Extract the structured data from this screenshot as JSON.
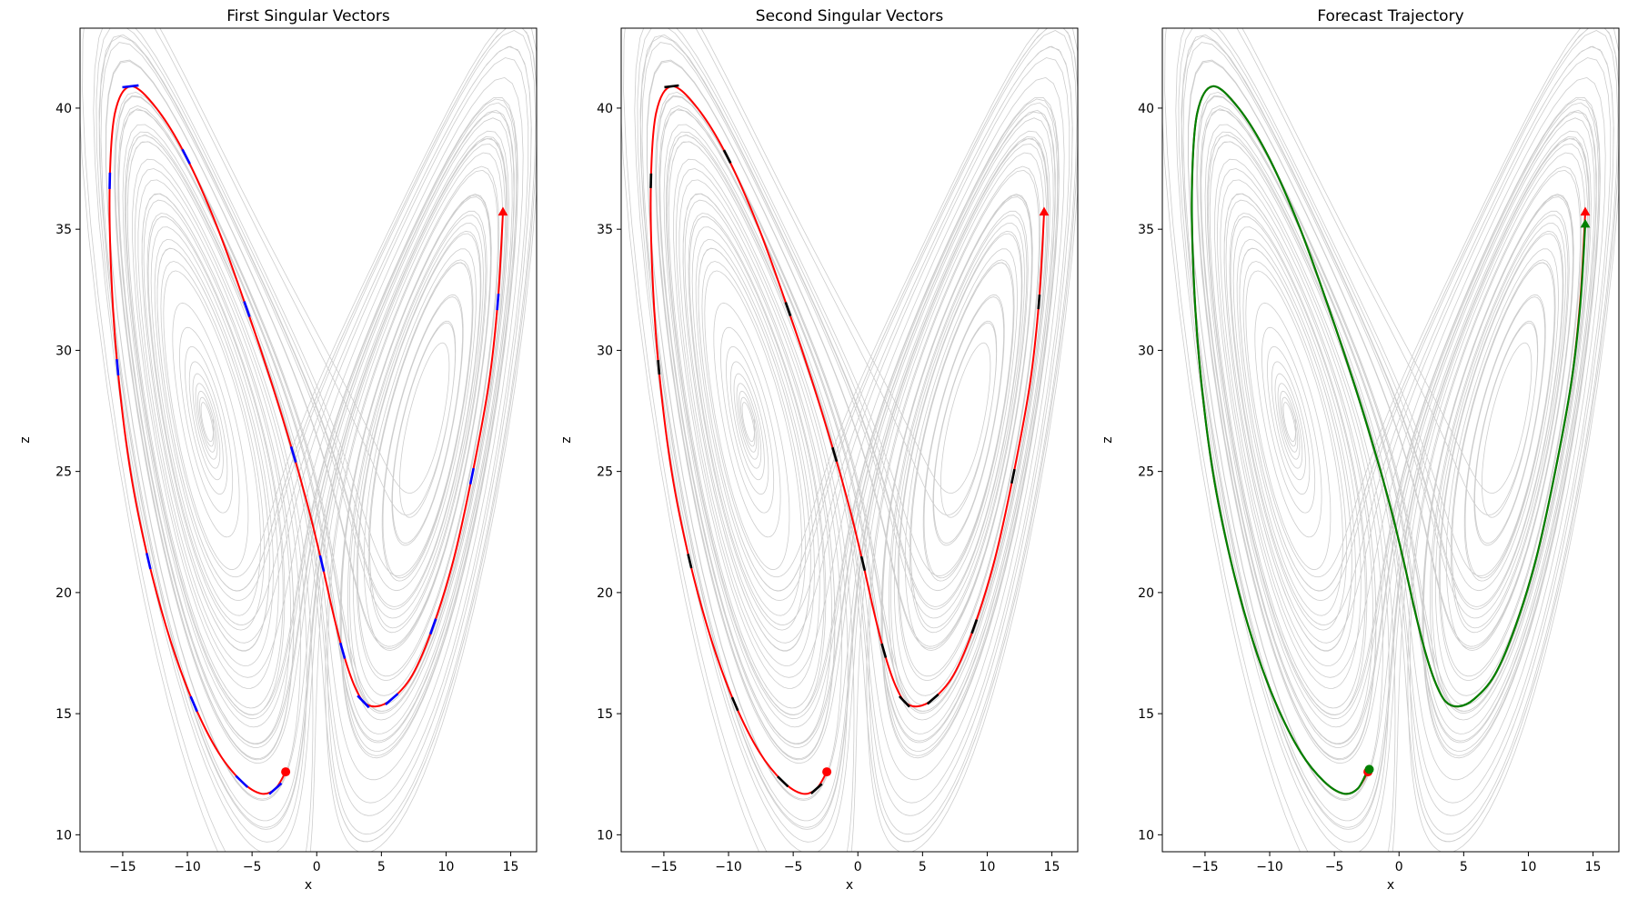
{
  "chart_data": [
    {
      "type": "line",
      "title": "First Singular Vectors",
      "xlabel": "x",
      "ylabel": "z",
      "xlim": [
        -18.3,
        17.0
      ],
      "ylim": [
        9.3,
        43.3
      ],
      "xticks": [
        -15,
        -10,
        -5,
        0,
        5,
        10,
        15
      ],
      "yticks": [
        10,
        15,
        20,
        25,
        30,
        35,
        40
      ],
      "colors": {
        "trajectory": "#ff0000",
        "vectors": "#0000ff",
        "attractor": "#c8c8c8"
      },
      "series": [
        {
          "x": [
            -2.4,
            -3.2,
            -4.3,
            -5.8,
            -7.6,
            -9.5,
            -11.3,
            -13.0,
            -14.4,
            -15.4,
            -15.9,
            -16.0,
            -15.6,
            -14.4,
            -12.4,
            -10.1,
            -7.7,
            -5.4,
            -3.4,
            -1.8,
            -0.6,
            0.4,
            1.2,
            2.0,
            2.8,
            3.6,
            4.6,
            5.8,
            7.4,
            9.0,
            10.6,
            12.0,
            13.3,
            14.0,
            14.4
          ],
          "y": [
            12.6,
            11.9,
            11.7,
            12.2,
            13.4,
            15.4,
            18.0,
            21.3,
            25.0,
            29.3,
            33.3,
            37.0,
            39.8,
            40.9,
            40.0,
            38.0,
            35.1,
            31.7,
            28.5,
            25.7,
            23.4,
            21.2,
            19.3,
            17.6,
            16.3,
            15.5,
            15.3,
            15.6,
            16.6,
            18.6,
            21.4,
            24.8,
            28.6,
            32.0,
            35.7
          ]
        },
        {
          "x": [
            -2.4
          ],
          "y": [
            12.6
          ]
        },
        {
          "x": [
            14.4
          ],
          "y": [
            35.7
          ]
        }
      ]
    },
    {
      "type": "line",
      "title": "Second Singular Vectors",
      "xlabel": "x",
      "ylabel": "z",
      "xlim": [
        -18.3,
        17.0
      ],
      "ylim": [
        9.3,
        43.3
      ],
      "xticks": [
        -15,
        -10,
        -5,
        0,
        5,
        10,
        15
      ],
      "yticks": [
        10,
        15,
        20,
        25,
        30,
        35,
        40
      ],
      "colors": {
        "trajectory": "#ff0000",
        "vectors": "#000000",
        "attractor": "#c8c8c8"
      },
      "series": [
        {
          "x": [
            -2.4,
            -3.2,
            -4.3,
            -5.8,
            -7.6,
            -9.5,
            -11.3,
            -13.0,
            -14.4,
            -15.4,
            -15.9,
            -16.0,
            -15.6,
            -14.4,
            -12.4,
            -10.1,
            -7.7,
            -5.4,
            -3.4,
            -1.8,
            -0.6,
            0.4,
            1.2,
            2.0,
            2.8,
            3.6,
            4.6,
            5.8,
            7.4,
            9.0,
            10.6,
            12.0,
            13.3,
            14.0,
            14.4
          ],
          "y": [
            12.6,
            11.9,
            11.7,
            12.2,
            13.4,
            15.4,
            18.0,
            21.3,
            25.0,
            29.3,
            33.3,
            37.0,
            39.8,
            40.9,
            40.0,
            38.0,
            35.1,
            31.7,
            28.5,
            25.7,
            23.4,
            21.2,
            19.3,
            17.6,
            16.3,
            15.5,
            15.3,
            15.6,
            16.6,
            18.6,
            21.4,
            24.8,
            28.6,
            32.0,
            35.7
          ]
        },
        {
          "x": [
            -2.4
          ],
          "y": [
            12.6
          ]
        },
        {
          "x": [
            14.4
          ],
          "y": [
            35.7
          ]
        }
      ]
    },
    {
      "type": "line",
      "title": "Forecast Trajectory",
      "xlabel": "x",
      "ylabel": "z",
      "xlim": [
        -18.3,
        17.0
      ],
      "ylim": [
        9.3,
        43.3
      ],
      "xticks": [
        -15,
        -10,
        -5,
        0,
        5,
        10,
        15
      ],
      "yticks": [
        10,
        15,
        20,
        25,
        30,
        35,
        40
      ],
      "colors": {
        "truth": "#ff0000",
        "forecast": "#008000",
        "attractor": "#c8c8c8"
      },
      "series": [
        {
          "x": [
            -2.4,
            -3.2,
            -4.3,
            -5.8,
            -7.6,
            -9.5,
            -11.3,
            -13.0,
            -14.4,
            -15.4,
            -15.9,
            -16.0,
            -15.6,
            -14.4,
            -12.4,
            -10.1,
            -7.7,
            -5.4,
            -3.4,
            -1.8,
            -0.6,
            0.4,
            1.2,
            2.0,
            2.8,
            3.6,
            4.6,
            5.8,
            7.4,
            9.0,
            10.6,
            12.0,
            13.3,
            14.0,
            14.4
          ],
          "y": [
            12.6,
            11.9,
            11.7,
            12.2,
            13.4,
            15.4,
            18.0,
            21.3,
            25.0,
            29.3,
            33.3,
            37.0,
            39.8,
            40.9,
            40.0,
            38.0,
            35.1,
            31.7,
            28.5,
            25.7,
            23.4,
            21.2,
            19.3,
            17.6,
            16.3,
            15.5,
            15.3,
            15.6,
            16.6,
            18.6,
            21.4,
            24.8,
            28.6,
            32.0,
            35.7
          ]
        },
        {
          "x": [
            -2.4,
            -3.2,
            -4.3,
            -5.8,
            -7.6,
            -9.5,
            -11.3,
            -13.0,
            -14.4,
            -15.4,
            -15.9,
            -16.0,
            -15.6,
            -14.4,
            -12.4,
            -10.1,
            -7.7,
            -5.4,
            -3.4,
            -1.8,
            -0.6,
            0.4,
            1.2,
            2.0,
            2.8,
            3.6,
            4.6,
            5.8,
            7.4,
            9.0,
            10.6,
            12.0,
            13.3,
            14.0,
            14.4
          ],
          "y": [
            12.7,
            11.9,
            11.7,
            12.2,
            13.4,
            15.4,
            18.0,
            21.3,
            25.0,
            29.3,
            33.3,
            37.0,
            39.8,
            40.9,
            40.0,
            38.0,
            35.1,
            31.7,
            28.5,
            25.7,
            23.4,
            21.2,
            19.3,
            17.6,
            16.3,
            15.5,
            15.3,
            15.6,
            16.6,
            18.6,
            21.4,
            24.8,
            28.6,
            31.8,
            35.2
          ]
        },
        {
          "x": [
            -2.4
          ],
          "y": [
            12.6
          ]
        },
        {
          "x": [
            14.4
          ],
          "y": [
            35.7
          ]
        },
        {
          "x": [
            -2.3
          ],
          "y": [
            12.7
          ]
        },
        {
          "x": [
            14.4
          ],
          "y": [
            35.2
          ]
        }
      ]
    }
  ]
}
